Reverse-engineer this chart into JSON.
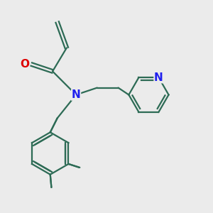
{
  "bg_color": "#ebebeb",
  "bond_color": "#2d6b55",
  "N_color": "#2020ee",
  "O_color": "#dd0000",
  "line_width": 1.6,
  "font_size_atom": 10,
  "xlim": [
    0.5,
    9.5
  ],
  "ylim": [
    0.5,
    9.5
  ]
}
